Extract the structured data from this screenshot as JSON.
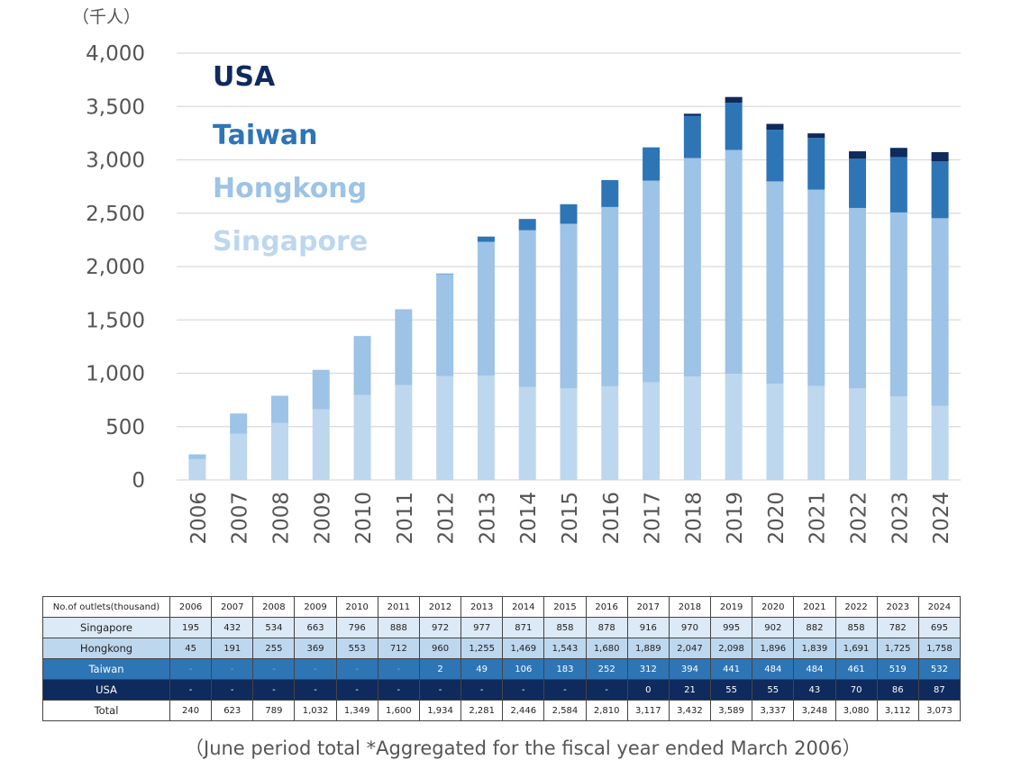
{
  "chart_data": {
    "type": "bar",
    "stacked": true,
    "unit_label": "（千人）",
    "categories": [
      "2006",
      "2007",
      "2008",
      "2009",
      "2010",
      "2011",
      "2012",
      "2013",
      "2014",
      "2015",
      "2016",
      "2017",
      "2018",
      "2019",
      "2020",
      "2021",
      "2022",
      "2023",
      "2024"
    ],
    "series": [
      {
        "name": "Singapore",
        "color": "#bdd7ee",
        "values": [
          195,
          432,
          534,
          663,
          796,
          888,
          972,
          977,
          871,
          858,
          878,
          916,
          970,
          995,
          902,
          882,
          858,
          782,
          695
        ]
      },
      {
        "name": "Hongkong",
        "color": "#9dc3e6",
        "values": [
          45,
          191,
          255,
          369,
          553,
          712,
          960,
          1255,
          1469,
          1543,
          1680,
          1889,
          2047,
          2098,
          1896,
          1839,
          1691,
          1725,
          1758
        ]
      },
      {
        "name": "Taiwan",
        "color": "#2e75b6",
        "values": [
          0,
          0,
          0,
          0,
          0,
          0,
          2,
          49,
          106,
          183,
          252,
          312,
          394,
          441,
          484,
          484,
          461,
          519,
          532
        ]
      },
      {
        "name": "USA",
        "color": "#0f2a5c",
        "values": [
          0,
          0,
          0,
          0,
          0,
          0,
          0,
          0,
          0,
          0,
          0,
          0,
          21,
          55,
          55,
          43,
          70,
          86,
          87
        ]
      }
    ],
    "ylim": [
      0,
      4000
    ],
    "yticks": [
      0,
      500,
      1000,
      1500,
      2000,
      2500,
      3000,
      3500,
      4000
    ],
    "ytick_labels": [
      "0",
      "500",
      "1,000",
      "1,500",
      "2,000",
      "2,500",
      "3,000",
      "3,500",
      "4,000"
    ],
    "grid": true,
    "legend_position": "top-left",
    "legend_order": [
      "USA",
      "Taiwan",
      "Hongkong",
      "Singapore"
    ]
  },
  "table": {
    "header_label": "No.of outlets(thousand)",
    "years": [
      "2006",
      "2007",
      "2008",
      "2009",
      "2010",
      "2011",
      "2012",
      "2013",
      "2014",
      "2015",
      "2016",
      "2017",
      "2018",
      "2019",
      "2020",
      "2021",
      "2022",
      "2023",
      "2024"
    ],
    "rows": [
      {
        "label": "Singapore",
        "cells": [
          "195",
          "432",
          "534",
          "663",
          "796",
          "888",
          "972",
          "977",
          "871",
          "858",
          "878",
          "916",
          "970",
          "995",
          "902",
          "882",
          "858",
          "782",
          "695"
        ]
      },
      {
        "label": "Hongkong",
        "cells": [
          "45",
          "191",
          "255",
          "369",
          "553",
          "712",
          "960",
          "1,255",
          "1,469",
          "1,543",
          "1,680",
          "1,889",
          "2,047",
          "2,098",
          "1,896",
          "1,839",
          "1,691",
          "1,725",
          "1,758"
        ]
      },
      {
        "label": "Taiwan",
        "cells": [
          "-",
          "-",
          "-",
          "-",
          "-",
          "-",
          "2",
          "49",
          "106",
          "183",
          "252",
          "312",
          "394",
          "441",
          "484",
          "484",
          "461",
          "519",
          "532"
        ]
      },
      {
        "label": "USA",
        "cells": [
          "-",
          "-",
          "-",
          "-",
          "-",
          "-",
          "-",
          "-",
          "-",
          "-",
          "-",
          "0",
          "21",
          "55",
          "55",
          "43",
          "70",
          "86",
          "87"
        ]
      },
      {
        "label": "Total",
        "cells": [
          "240",
          "623",
          "789",
          "1,032",
          "1,349",
          "1,600",
          "1,934",
          "2,281",
          "2,446",
          "2,584",
          "2,810",
          "3,117",
          "3,432",
          "3,589",
          "3,337",
          "3,248",
          "3,080",
          "3,112",
          "3,073"
        ]
      }
    ]
  },
  "footnote": "（June period total  *Aggregated for the fiscal year ended March 2006）"
}
